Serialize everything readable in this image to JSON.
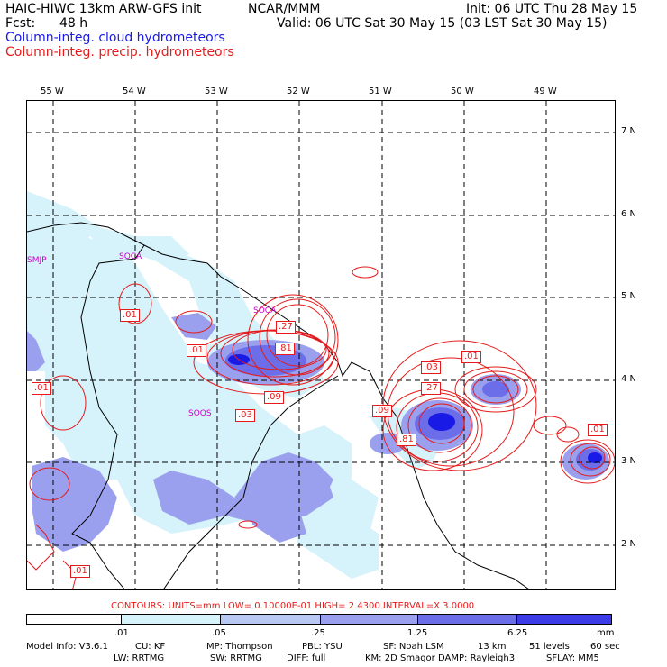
{
  "header": {
    "model": "HAIC-HIWC 13km ARW-GFS init",
    "org": "NCAR/MMM",
    "fcst_label": "Fcst:",
    "fcst_value": "48 h",
    "init": "Init: 06 UTC Thu 28 May 15",
    "valid": "Valid: 06 UTC Sat 30 May 15 (03 LST Sat 30 May 15)",
    "field1": "Column-integ. cloud hydrometeors",
    "field2": "Column-integ. precip. hydrometeors"
  },
  "map": {
    "lon_labels": [
      "55 W",
      "54 W",
      "53 W",
      "52 W",
      "51 W",
      "50 W",
      "49 W"
    ],
    "lat_labels": [
      "7 N",
      "6 N",
      "5 N",
      "4 N",
      "3 N",
      "2 N"
    ],
    "stations": [
      "SMJP",
      "SOCA",
      "SOCA",
      "SOOS"
    ],
    "contour_labels": [
      ".01",
      ".01",
      ".01",
      ".81",
      ".27",
      ".09",
      ".03",
      ".03",
      ".01",
      ".27",
      ".09",
      ".81",
      ".01",
      ".01"
    ]
  },
  "contours_info": "CONTOURS:  UNITS=mm  LOW= 0.10000E-01  HIGH=  2.4300     INTERVAL=X  3.0000",
  "colorbar": {
    "ticks": [
      ".01",
      ".05",
      ".25",
      "1.25",
      "6.25",
      "mm"
    ],
    "colors": [
      "#ffffff",
      "#d6f2fb",
      "#b8c8f3",
      "#9aa0ee",
      "#6c6ee9",
      "#3b3be8",
      "#1a1ae6"
    ]
  },
  "footer": {
    "line1": [
      "Model Info: V3.6.1",
      "CU: KF",
      "MP: Thompson",
      "PBL: YSU",
      "SF: Noah LSM",
      "13 km",
      "51 levels",
      "60 sec"
    ],
    "line2": [
      "LW: RRTMG",
      "SW: RRTMG",
      "DIFF: full",
      "KM: 2D Smagor",
      "DAMP: Rayleigh3",
      "SFLAY: MM5"
    ]
  }
}
